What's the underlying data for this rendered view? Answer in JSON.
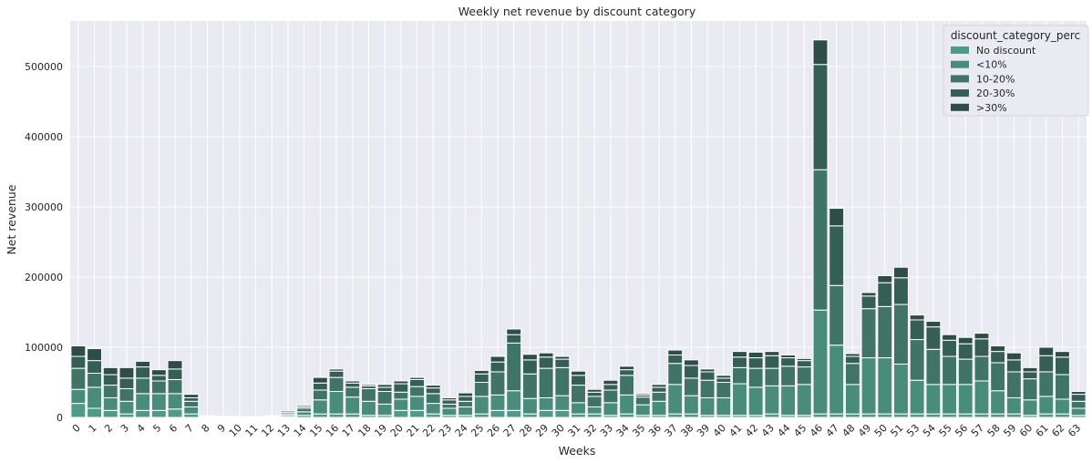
{
  "chart_data": {
    "type": "bar",
    "stacked": true,
    "title": "Weekly net revenue by discount category",
    "xlabel": "Weeks",
    "ylabel": "Net revenue",
    "ylim": [
      0,
      565000
    ],
    "yticks": [
      0,
      100000,
      200000,
      300000,
      400000,
      500000
    ],
    "grid": true,
    "legend_title": "discount_category_perc",
    "legend_position": "top-right",
    "categories": [
      "0",
      "1",
      "2",
      "3",
      "4",
      "5",
      "6",
      "7",
      "8",
      "9",
      "10",
      "11",
      "12",
      "13",
      "14",
      "15",
      "16",
      "17",
      "18",
      "19",
      "20",
      "21",
      "22",
      "23",
      "24",
      "25",
      "26",
      "27",
      "28",
      "29",
      "30",
      "31",
      "32",
      "33",
      "34",
      "35",
      "36",
      "37",
      "38",
      "39",
      "40",
      "41",
      "42",
      "43",
      "44",
      "45",
      "46",
      "47",
      "48",
      "49",
      "50",
      "51",
      "53",
      "54",
      "55",
      "56",
      "57",
      "58",
      "59",
      "60",
      "61",
      "62",
      "63"
    ],
    "series": [
      {
        "name": "No discount",
        "color": "#4f9a88",
        "values": [
          20000,
          13000,
          10000,
          5000,
          10000,
          10000,
          12000,
          5000,
          500,
          200,
          300,
          200,
          500,
          1000,
          3000,
          5000,
          5000,
          5000,
          3000,
          3000,
          10000,
          10000,
          5000,
          3000,
          3000,
          5000,
          10000,
          10000,
          5000,
          10000,
          10000,
          5000,
          5000,
          3000,
          5000,
          3000,
          3000,
          5000,
          5000,
          3000,
          3000,
          3000,
          3000,
          5000,
          3000,
          3000,
          5000,
          5000,
          5000,
          5000,
          5000,
          5000,
          5000,
          5000,
          5000,
          5000,
          5000,
          5000,
          5000,
          3000,
          5000,
          5000,
          3000
        ]
      },
      {
        "name": "<10%",
        "color": "#4a8c7a",
        "values": [
          20000,
          30000,
          18000,
          18000,
          24000,
          24000,
          22000,
          10000,
          1000,
          500,
          500,
          300,
          1000,
          2000,
          5000,
          20000,
          32000,
          24000,
          20000,
          16000,
          16000,
          20000,
          15000,
          10000,
          12000,
          25000,
          22000,
          28000,
          22000,
          18000,
          21000,
          16000,
          10000,
          18000,
          27000,
          15000,
          20000,
          42000,
          26000,
          25000,
          25000,
          45000,
          40000,
          40000,
          42000,
          44000,
          148000,
          98000,
          42000,
          80000,
          80000,
          71000,
          48000,
          42000,
          42000,
          42000,
          47000,
          33000,
          23000,
          22000,
          25000,
          21000,
          10000
        ]
      },
      {
        "name": "10-20%",
        "color": "#3f7466",
        "values": [
          30000,
          20000,
          18000,
          18000,
          22000,
          18000,
          20000,
          8000,
          500,
          300,
          200,
          200,
          500,
          2000,
          5000,
          14000,
          20000,
          14000,
          18000,
          18000,
          10000,
          14000,
          14000,
          6000,
          8000,
          20000,
          33000,
          68000,
          35000,
          42000,
          40000,
          25000,
          15000,
          18000,
          28000,
          11000,
          13000,
          30000,
          25000,
          25000,
          22000,
          23000,
          27000,
          25000,
          28000,
          25000,
          200000,
          85000,
          30000,
          70000,
          73000,
          85000,
          58000,
          50000,
          40000,
          36000,
          35000,
          40000,
          37000,
          30000,
          35000,
          35000,
          10000
        ]
      },
      {
        "name": "20-30%",
        "color": "#355f55",
        "values": [
          17000,
          18000,
          15000,
          15000,
          16000,
          8000,
          15000,
          5000,
          200,
          200,
          200,
          200,
          300,
          2000,
          2000,
          10000,
          9000,
          6000,
          4000,
          6000,
          12000,
          10000,
          8000,
          6000,
          7000,
          12000,
          14000,
          12000,
          20000,
          16000,
          12000,
          14000,
          6000,
          8000,
          8000,
          3000,
          7000,
          12000,
          18000,
          12000,
          6000,
          15000,
          15000,
          18000,
          12000,
          9000,
          150000,
          85000,
          10000,
          18000,
          34000,
          38000,
          28000,
          32000,
          23000,
          22000,
          25000,
          16000,
          17000,
          10000,
          23000,
          25000,
          10000
        ]
      },
      {
        "name": ">30%",
        "color": "#2f4d47",
        "values": [
          15000,
          17000,
          10000,
          15000,
          8000,
          8000,
          12000,
          5000,
          200,
          200,
          200,
          200,
          300,
          2000,
          2000,
          8000,
          3000,
          3000,
          2000,
          4000,
          4000,
          3000,
          4000,
          3000,
          5000,
          5000,
          8000,
          8000,
          8000,
          6000,
          4000,
          6000,
          4000,
          6000,
          5000,
          2000,
          4000,
          7000,
          8000,
          4000,
          4000,
          8000,
          8000,
          6000,
          4000,
          3000,
          35000,
          25000,
          4000,
          5000,
          10000,
          15000,
          7000,
          8000,
          8000,
          9000,
          8000,
          8000,
          10000,
          6000,
          12000,
          8000,
          4000
        ]
      }
    ]
  }
}
